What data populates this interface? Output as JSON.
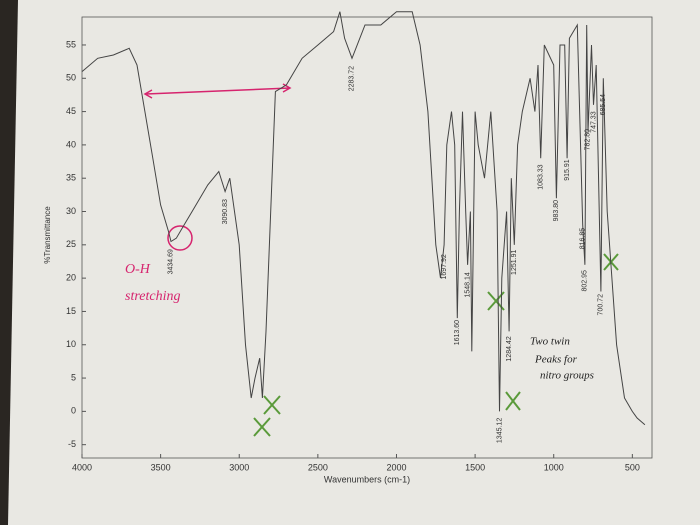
{
  "chart_data": {
    "type": "line",
    "x_label": "Wavenumbers (cm-1)",
    "y_label": "%Transmittance",
    "xlim": [
      4000,
      375
    ],
    "xticks": [
      4000,
      3500,
      3000,
      2500,
      2000,
      1500,
      1000,
      500
    ],
    "ylim": [
      -7,
      61
    ],
    "yticks": [
      -5,
      0,
      5,
      10,
      15,
      20,
      25,
      30,
      35,
      40,
      45,
      50,
      55
    ],
    "color": "#444444",
    "x": [
      4000,
      3900,
      3800,
      3700,
      3650,
      3600,
      3550,
      3500,
      3450,
      3434,
      3400,
      3350,
      3300,
      3200,
      3130,
      3090,
      3060,
      3000,
      2960,
      2924,
      2900,
      2870,
      2853,
      2830,
      2800,
      2770,
      2700,
      2600,
      2500,
      2400,
      2360,
      2330,
      2283,
      2200,
      2100,
      2000,
      1950,
      1900,
      1850,
      1800,
      1750,
      1720,
      1697,
      1680,
      1650,
      1630,
      1613,
      1600,
      1580,
      1560,
      1548,
      1530,
      1521,
      1500,
      1480,
      1440,
      1400,
      1360,
      1345,
      1330,
      1300,
      1284,
      1270,
      1251,
      1230,
      1200,
      1150,
      1120,
      1100,
      1083,
      1060,
      1000,
      983,
      960,
      930,
      915,
      900,
      850,
      816,
      802,
      790,
      782,
      760,
      747,
      730,
      700,
      685,
      660,
      600,
      550,
      500,
      470,
      420
    ],
    "values": [
      51,
      53,
      53.5,
      54.5,
      52,
      45,
      38,
      31,
      27,
      25.5,
      26,
      28,
      30,
      34,
      36,
      33,
      35,
      25,
      10,
      2,
      5,
      8,
      2,
      12,
      30,
      48,
      49,
      53,
      55,
      57,
      60,
      56,
      53,
      58,
      58,
      60,
      60,
      60,
      55,
      45,
      25,
      20,
      25,
      40,
      45,
      40,
      14,
      30,
      45,
      30,
      22,
      30,
      9,
      45,
      40,
      35,
      45,
      30,
      0,
      20,
      30,
      12,
      35,
      25,
      40,
      45,
      50,
      45,
      52,
      38,
      55,
      52,
      32,
      55,
      55,
      38,
      56,
      58,
      28,
      22,
      58,
      42,
      55,
      46,
      52,
      18,
      50,
      30,
      10,
      2,
      0,
      -1,
      -2
    ],
    "peak_labels": [
      {
        "value": 3434.69,
        "label": "3434.69"
      },
      {
        "value": 3090.83,
        "label": "3090.83"
      },
      {
        "value": 2283.72,
        "label": "2283.72"
      },
      {
        "value": 1697.92,
        "label": "1697.92"
      },
      {
        "value": 1613.6,
        "label": "1613.60"
      },
      {
        "value": 1548.14,
        "label": "1548.14"
      },
      {
        "value": 1345.12,
        "label": "1345.12"
      },
      {
        "value": 1284.42,
        "label": "1284.42"
      },
      {
        "value": 1251.91,
        "label": "1251.91"
      },
      {
        "value": 1083.33,
        "label": "1083.33"
      },
      {
        "value": 983.8,
        "label": "983.80"
      },
      {
        "value": 915.91,
        "label": "915.91"
      },
      {
        "value": 816.85,
        "label": "816.85"
      },
      {
        "value": 802.95,
        "label": "802.95"
      },
      {
        "value": 782.8,
        "label": "782.80"
      },
      {
        "value": 747.33,
        "label": "747.33"
      },
      {
        "value": 700.72,
        "label": "700.72"
      },
      {
        "value": 685.54,
        "label": "685.54"
      }
    ],
    "annotations": [
      "O-H",
      "stretching",
      "Two twin",
      "Peaks for",
      "nitro groups"
    ]
  }
}
